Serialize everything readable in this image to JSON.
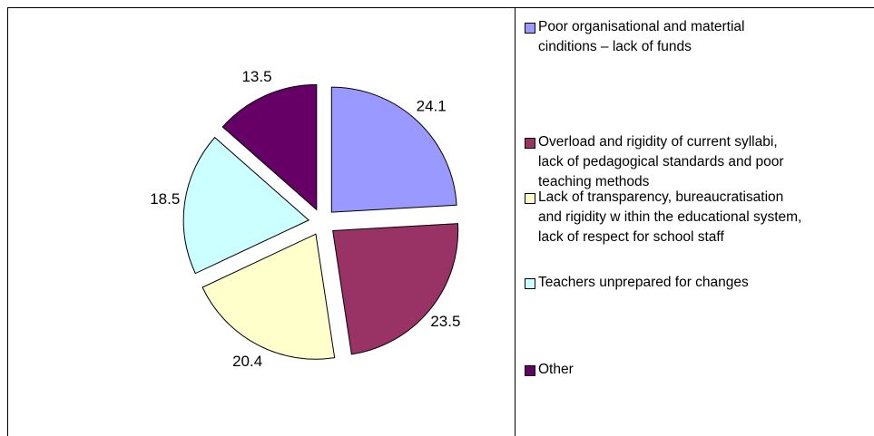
{
  "chart_data": {
    "type": "pie",
    "categories": [
      "Poor organisational and matertial\ncinditions – lack of funds",
      "Overload and rigidity of current syllabi,\nlack of pedagogical standards and poor\nteaching methods",
      "Lack of transparency, bureaucratisation\nand rigidity w ithin the educational system,\nlack of respect for school staff",
      "Teachers unprepared for changes",
      "Other"
    ],
    "values": [
      24.1,
      23.5,
      20.4,
      18.5,
      13.5
    ],
    "colors": [
      "#9999ff",
      "#993366",
      "#ffffcc",
      "#ccffff",
      "#660066"
    ],
    "exploded": true,
    "legend": "right"
  }
}
